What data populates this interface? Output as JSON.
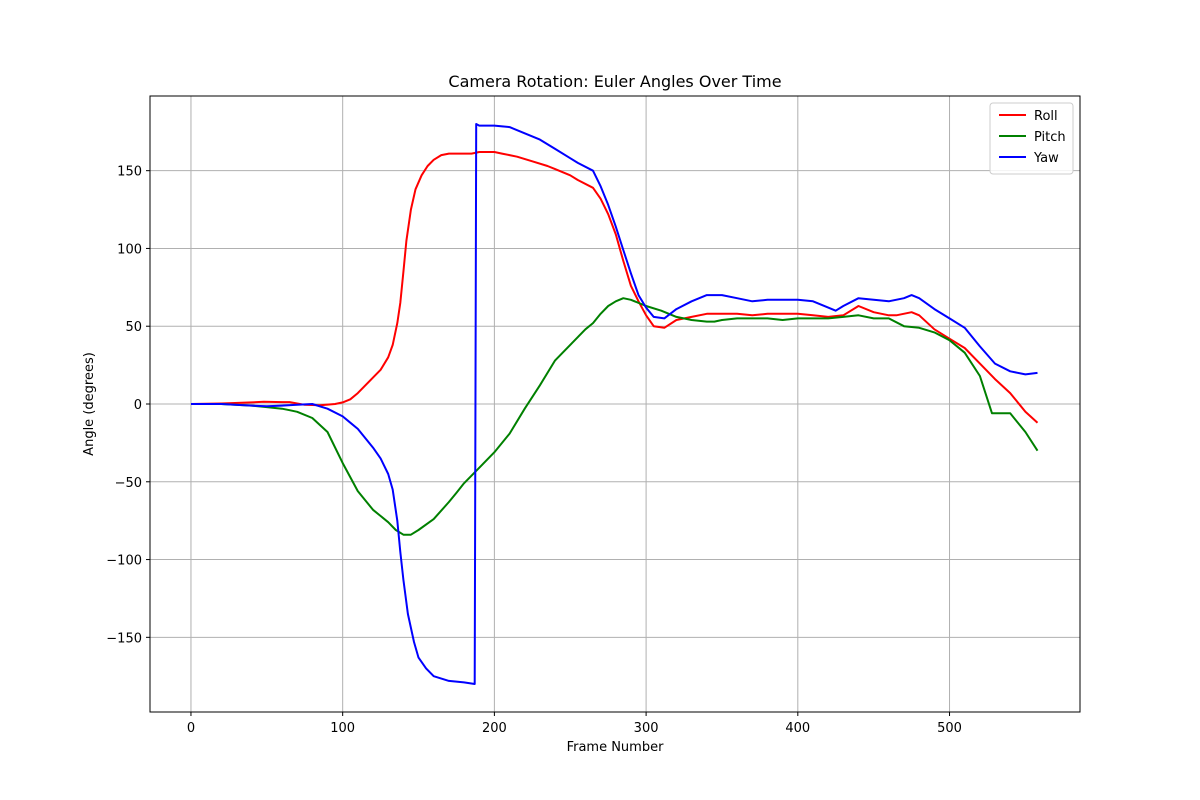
{
  "chart_data": {
    "type": "line",
    "title": "Camera Rotation: Euler Angles Over Time",
    "xlabel": "Frame Number",
    "ylabel": "Angle (degrees)",
    "xlim": [
      -27,
      586
    ],
    "ylim": [
      -198,
      198
    ],
    "xticks": [
      0,
      100,
      200,
      300,
      400,
      500
    ],
    "yticks": [
      -150,
      -100,
      -50,
      0,
      50,
      100,
      150
    ],
    "ytick_labels": [
      "−150",
      "−100",
      "−50",
      "0",
      "50",
      "100",
      "150"
    ],
    "grid": true,
    "legend": "top-right",
    "series": [
      {
        "name": "Roll",
        "color": "#ff0000",
        "points": [
          [
            0,
            0
          ],
          [
            20,
            0.3
          ],
          [
            40,
            1
          ],
          [
            48,
            1.5
          ],
          [
            60,
            1.2
          ],
          [
            65,
            1.2
          ],
          [
            75,
            -0.5
          ],
          [
            85,
            -0.8
          ],
          [
            95,
            0
          ],
          [
            100,
            1
          ],
          [
            105,
            3
          ],
          [
            110,
            7
          ],
          [
            115,
            12
          ],
          [
            120,
            17
          ],
          [
            125,
            22
          ],
          [
            130,
            30
          ],
          [
            133,
            38
          ],
          [
            136,
            52
          ],
          [
            138,
            65
          ],
          [
            140,
            85
          ],
          [
            142,
            105
          ],
          [
            145,
            125
          ],
          [
            148,
            138
          ],
          [
            152,
            147
          ],
          [
            156,
            153
          ],
          [
            160,
            157
          ],
          [
            165,
            160
          ],
          [
            170,
            161
          ],
          [
            180,
            161
          ],
          [
            185,
            161
          ],
          [
            190,
            162
          ],
          [
            200,
            162
          ],
          [
            205,
            161
          ],
          [
            215,
            159
          ],
          [
            225,
            156
          ],
          [
            235,
            153
          ],
          [
            240,
            151
          ],
          [
            250,
            147
          ],
          [
            255,
            144
          ],
          [
            265,
            139
          ],
          [
            270,
            132
          ],
          [
            275,
            122
          ],
          [
            280,
            109
          ],
          [
            285,
            92
          ],
          [
            290,
            76
          ],
          [
            295,
            66
          ],
          [
            300,
            57
          ],
          [
            305,
            50
          ],
          [
            312,
            49
          ],
          [
            320,
            54
          ],
          [
            330,
            56
          ],
          [
            340,
            58
          ],
          [
            350,
            58
          ],
          [
            360,
            58
          ],
          [
            370,
            57
          ],
          [
            380,
            58
          ],
          [
            390,
            58
          ],
          [
            400,
            58
          ],
          [
            410,
            57
          ],
          [
            420,
            56
          ],
          [
            430,
            57
          ],
          [
            440,
            63
          ],
          [
            450,
            59
          ],
          [
            460,
            57
          ],
          [
            465,
            57
          ],
          [
            475,
            59
          ],
          [
            480,
            57
          ],
          [
            490,
            48
          ],
          [
            500,
            42
          ],
          [
            510,
            36
          ],
          [
            520,
            26
          ],
          [
            530,
            16
          ],
          [
            540,
            7
          ],
          [
            550,
            -5
          ],
          [
            558,
            -12
          ]
        ]
      },
      {
        "name": "Pitch",
        "color": "#008000",
        "points": [
          [
            0,
            0
          ],
          [
            20,
            0
          ],
          [
            40,
            -1
          ],
          [
            50,
            -2
          ],
          [
            60,
            -3
          ],
          [
            65,
            -4
          ],
          [
            70,
            -5
          ],
          [
            80,
            -9
          ],
          [
            90,
            -18
          ],
          [
            100,
            -38
          ],
          [
            110,
            -56
          ],
          [
            120,
            -68
          ],
          [
            130,
            -76
          ],
          [
            135,
            -81
          ],
          [
            140,
            -84
          ],
          [
            145,
            -84
          ],
          [
            150,
            -81
          ],
          [
            160,
            -74
          ],
          [
            170,
            -63
          ],
          [
            175,
            -57
          ],
          [
            180,
            -51
          ],
          [
            190,
            -41
          ],
          [
            200,
            -31
          ],
          [
            210,
            -19
          ],
          [
            220,
            -3
          ],
          [
            230,
            12
          ],
          [
            240,
            28
          ],
          [
            250,
            38
          ],
          [
            260,
            48
          ],
          [
            265,
            52
          ],
          [
            270,
            58
          ],
          [
            275,
            63
          ],
          [
            280,
            66
          ],
          [
            285,
            68
          ],
          [
            290,
            67
          ],
          [
            300,
            63
          ],
          [
            310,
            60
          ],
          [
            320,
            56
          ],
          [
            330,
            54
          ],
          [
            340,
            53
          ],
          [
            345,
            53
          ],
          [
            350,
            54
          ],
          [
            360,
            55
          ],
          [
            370,
            55
          ],
          [
            380,
            55
          ],
          [
            390,
            54
          ],
          [
            400,
            55
          ],
          [
            410,
            55
          ],
          [
            420,
            55
          ],
          [
            430,
            56
          ],
          [
            440,
            57
          ],
          [
            450,
            55
          ],
          [
            460,
            55
          ],
          [
            470,
            50
          ],
          [
            480,
            49
          ],
          [
            490,
            46
          ],
          [
            500,
            41
          ],
          [
            510,
            33
          ],
          [
            520,
            18
          ],
          [
            528,
            -6
          ],
          [
            535,
            -6
          ],
          [
            540,
            -6
          ],
          [
            550,
            -18
          ],
          [
            558,
            -30
          ]
        ]
      },
      {
        "name": "Yaw",
        "color": "#0000ff",
        "points": [
          [
            0,
            0
          ],
          [
            20,
            0
          ],
          [
            40,
            -1
          ],
          [
            50,
            -1.5
          ],
          [
            60,
            -1
          ],
          [
            70,
            -0.5
          ],
          [
            80,
            0
          ],
          [
            90,
            -3
          ],
          [
            100,
            -8
          ],
          [
            105,
            -12
          ],
          [
            110,
            -16
          ],
          [
            115,
            -22
          ],
          [
            120,
            -28
          ],
          [
            125,
            -35
          ],
          [
            130,
            -45
          ],
          [
            133,
            -55
          ],
          [
            136,
            -75
          ],
          [
            138,
            -95
          ],
          [
            140,
            -113
          ],
          [
            143,
            -135
          ],
          [
            147,
            -153
          ],
          [
            150,
            -163
          ],
          [
            155,
            -170
          ],
          [
            160,
            -175
          ],
          [
            170,
            -178
          ],
          [
            180,
            -179
          ],
          [
            187,
            -180
          ],
          [
            188,
            180
          ],
          [
            190,
            179
          ],
          [
            200,
            179
          ],
          [
            210,
            178
          ],
          [
            220,
            174
          ],
          [
            230,
            170
          ],
          [
            240,
            164
          ],
          [
            250,
            158
          ],
          [
            255,
            155
          ],
          [
            265,
            150
          ],
          [
            270,
            140
          ],
          [
            275,
            128
          ],
          [
            280,
            114
          ],
          [
            285,
            99
          ],
          [
            290,
            84
          ],
          [
            295,
            70
          ],
          [
            300,
            62
          ],
          [
            305,
            56
          ],
          [
            312,
            55
          ],
          [
            320,
            61
          ],
          [
            330,
            66
          ],
          [
            340,
            70
          ],
          [
            345,
            70
          ],
          [
            350,
            70
          ],
          [
            360,
            68
          ],
          [
            370,
            66
          ],
          [
            380,
            67
          ],
          [
            390,
            67
          ],
          [
            400,
            67
          ],
          [
            410,
            66
          ],
          [
            420,
            62
          ],
          [
            425,
            60
          ],
          [
            430,
            63
          ],
          [
            440,
            68
          ],
          [
            450,
            67
          ],
          [
            460,
            66
          ],
          [
            470,
            68
          ],
          [
            475,
            70
          ],
          [
            480,
            68
          ],
          [
            490,
            61
          ],
          [
            500,
            55
          ],
          [
            510,
            49
          ],
          [
            520,
            37
          ],
          [
            530,
            26
          ],
          [
            540,
            21
          ],
          [
            550,
            19
          ],
          [
            558,
            20
          ]
        ]
      }
    ]
  }
}
